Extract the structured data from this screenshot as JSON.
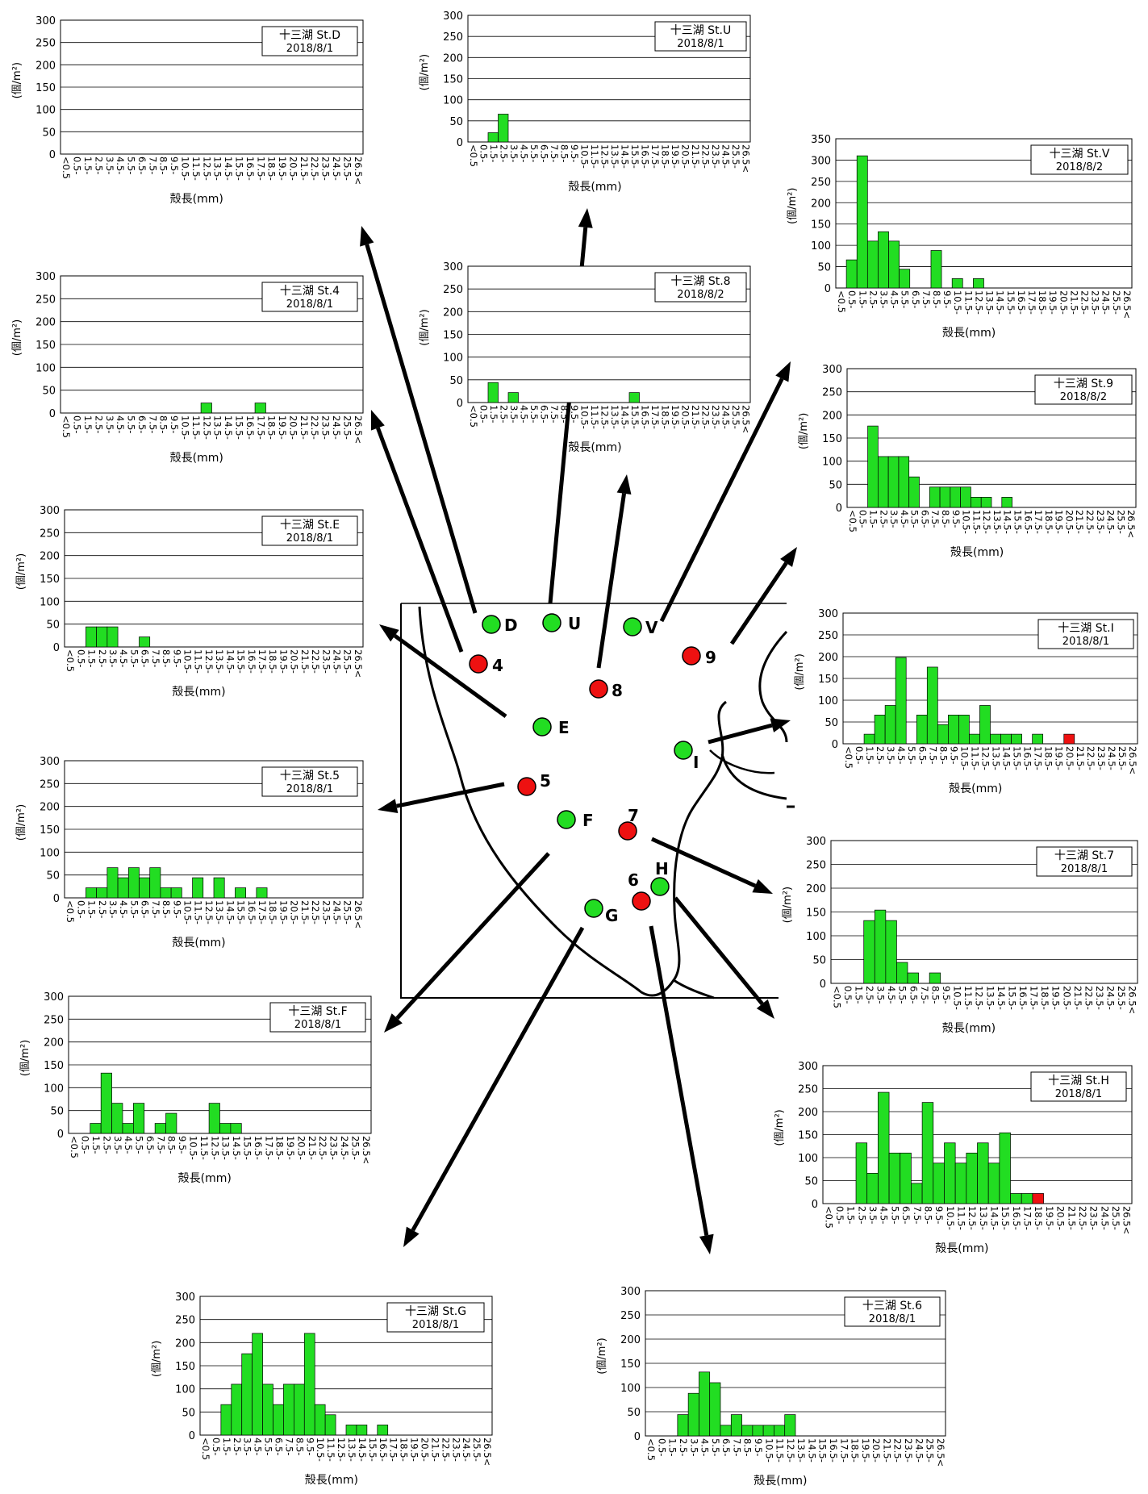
{
  "common": {
    "y_unit_label": "(個/m²)",
    "x_axis_label": "殻長(mm)",
    "tick_categories": [
      "<0.5",
      "0.5-",
      "1.5-",
      "2.5-",
      "3.5-",
      "4.5-",
      "5.5-",
      "6.5-",
      "7.5-",
      "8.5-",
      "9.5-",
      "10.5-",
      "11.5-",
      "12.5-",
      "13.5-",
      "14.5-",
      "15.5-",
      "16.5-",
      "17.5-",
      "18.5-",
      "19.5-",
      "20.5-",
      "21.5-",
      "22.5-",
      "23.5-",
      "24.5-",
      "25.5-",
      "26.5<"
    ],
    "colors": {
      "normal_bar": "#22dd22",
      "large_bar": "#ee1111",
      "axis": "#000000",
      "grid": "#000000"
    }
  },
  "map": {
    "colors": {
      "green_station": "#22dd22",
      "red_station": "#ee1111"
    },
    "stations": [
      {
        "id": "D",
        "color": "green"
      },
      {
        "id": "U",
        "color": "green"
      },
      {
        "id": "V",
        "color": "green"
      },
      {
        "id": "4",
        "color": "red"
      },
      {
        "id": "9",
        "color": "red"
      },
      {
        "id": "8",
        "color": "red"
      },
      {
        "id": "E",
        "color": "green"
      },
      {
        "id": "I",
        "color": "green"
      },
      {
        "id": "5",
        "color": "red"
      },
      {
        "id": "F",
        "color": "green"
      },
      {
        "id": "7",
        "color": "red"
      },
      {
        "id": "H",
        "color": "green"
      },
      {
        "id": "6",
        "color": "red"
      },
      {
        "id": "G",
        "color": "green"
      }
    ]
  },
  "chart_data": [
    {
      "type": "bar",
      "title": "十三湖 St.D",
      "subtitle": "2018/8/1",
      "ylim": [
        0,
        300
      ],
      "yticks": [
        0,
        50,
        100,
        150,
        200,
        250,
        300
      ],
      "xlabel": "殻長(mm)",
      "ylabel": "(個/m²)",
      "values": [
        0,
        0,
        0,
        0,
        0,
        0,
        0,
        0,
        0,
        0,
        0,
        0,
        0,
        0,
        0,
        0,
        0,
        0,
        0,
        0,
        0,
        0,
        0,
        0,
        0,
        0,
        0,
        0
      ],
      "highlight": []
    },
    {
      "type": "bar",
      "title": "十三湖 St.U",
      "subtitle": "2018/8/1",
      "ylim": [
        0,
        300
      ],
      "yticks": [
        0,
        50,
        100,
        150,
        200,
        250,
        300
      ],
      "xlabel": "殻長(mm)",
      "ylabel": "(個/m²)",
      "values": [
        0,
        0,
        22,
        66,
        0,
        0,
        0,
        0,
        0,
        0,
        0,
        0,
        0,
        0,
        0,
        0,
        0,
        0,
        0,
        0,
        0,
        0,
        0,
        0,
        0,
        0,
        0,
        0
      ],
      "highlight": []
    },
    {
      "type": "bar",
      "title": "十三湖 St.V",
      "subtitle": "2018/8/2",
      "ylim": [
        0,
        350
      ],
      "yticks": [
        0,
        50,
        100,
        150,
        200,
        250,
        300,
        350
      ],
      "xlabel": "殻長(mm)",
      "ylabel": "(個/m²)",
      "values": [
        0,
        66,
        310,
        110,
        132,
        110,
        44,
        0,
        0,
        88,
        0,
        22,
        0,
        22,
        0,
        0,
        0,
        0,
        0,
        0,
        0,
        0,
        0,
        0,
        0,
        0,
        0,
        0
      ],
      "highlight": []
    },
    {
      "type": "bar",
      "title": "十三湖 St.4",
      "subtitle": "2018/8/1",
      "ylim": [
        0,
        300
      ],
      "yticks": [
        0,
        50,
        100,
        150,
        200,
        250,
        300
      ],
      "xlabel": "殻長(mm)",
      "ylabel": "(個/m²)",
      "values": [
        0,
        0,
        0,
        0,
        0,
        0,
        0,
        0,
        0,
        0,
        0,
        0,
        0,
        22,
        0,
        0,
        0,
        0,
        22,
        0,
        0,
        0,
        0,
        0,
        0,
        0,
        0,
        0
      ],
      "highlight": []
    },
    {
      "type": "bar",
      "title": "十三湖 St.8",
      "subtitle": "2018/8/2",
      "ylim": [
        0,
        300
      ],
      "yticks": [
        0,
        50,
        100,
        150,
        200,
        250,
        300
      ],
      "xlabel": "殻長(mm)",
      "ylabel": "(個/m²)",
      "values": [
        0,
        0,
        44,
        0,
        22,
        0,
        0,
        0,
        0,
        0,
        0,
        0,
        0,
        0,
        0,
        0,
        22,
        0,
        0,
        0,
        0,
        0,
        0,
        0,
        0,
        0,
        0,
        0
      ],
      "highlight": []
    },
    {
      "type": "bar",
      "title": "十三湖 St.9",
      "subtitle": "2018/8/2",
      "ylim": [
        0,
        300
      ],
      "yticks": [
        0,
        50,
        100,
        150,
        200,
        250,
        300
      ],
      "xlabel": "殻長(mm)",
      "ylabel": "(個/m²)",
      "values": [
        0,
        0,
        176,
        110,
        110,
        110,
        66,
        0,
        44,
        44,
        44,
        44,
        22,
        22,
        0,
        22,
        0,
        0,
        0,
        0,
        0,
        0,
        0,
        0,
        0,
        0,
        0,
        0
      ],
      "highlight": []
    },
    {
      "type": "bar",
      "title": "十三湖 St.E",
      "subtitle": "2018/8/1",
      "ylim": [
        0,
        300
      ],
      "yticks": [
        0,
        50,
        100,
        150,
        200,
        250,
        300
      ],
      "xlabel": "殻長(mm)",
      "ylabel": "(個/m²)",
      "values": [
        0,
        0,
        44,
        44,
        44,
        0,
        0,
        22,
        0,
        0,
        0,
        0,
        0,
        0,
        0,
        0,
        0,
        0,
        0,
        0,
        0,
        0,
        0,
        0,
        0,
        0,
        0,
        0
      ],
      "highlight": []
    },
    {
      "type": "bar",
      "title": "十三湖 St.I",
      "subtitle": "2018/8/1",
      "ylim": [
        0,
        300
      ],
      "yticks": [
        0,
        50,
        100,
        150,
        200,
        250,
        300
      ],
      "xlabel": "殻長(mm)",
      "ylabel": "(個/m²)",
      "values": [
        0,
        0,
        22,
        66,
        88,
        198,
        0,
        66,
        176,
        44,
        66,
        66,
        22,
        88,
        22,
        22,
        22,
        0,
        22,
        0,
        0,
        22,
        0,
        0,
        0,
        0,
        0,
        0
      ],
      "highlight": [
        21
      ]
    },
    {
      "type": "bar",
      "title": "十三湖 St.5",
      "subtitle": "2018/8/1",
      "ylim": [
        0,
        300
      ],
      "yticks": [
        0,
        50,
        100,
        150,
        200,
        250,
        300
      ],
      "xlabel": "殻長(mm)",
      "ylabel": "(個/m²)",
      "values": [
        0,
        0,
        22,
        22,
        66,
        44,
        66,
        44,
        66,
        22,
        22,
        0,
        44,
        0,
        44,
        0,
        22,
        0,
        22,
        0,
        0,
        0,
        0,
        0,
        0,
        0,
        0,
        0
      ],
      "highlight": []
    },
    {
      "type": "bar",
      "title": "十三湖 St.7",
      "subtitle": "2018/8/1",
      "ylim": [
        0,
        300
      ],
      "yticks": [
        0,
        50,
        100,
        150,
        200,
        250,
        300
      ],
      "xlabel": "殻長(mm)",
      "ylabel": "(個/m²)",
      "values": [
        0,
        0,
        0,
        132,
        154,
        132,
        44,
        22,
        0,
        22,
        0,
        0,
        0,
        0,
        0,
        0,
        0,
        0,
        0,
        0,
        0,
        0,
        0,
        0,
        0,
        0,
        0,
        0
      ],
      "highlight": []
    },
    {
      "type": "bar",
      "title": "十三湖 St.F",
      "subtitle": "2018/8/1",
      "ylim": [
        0,
        300
      ],
      "yticks": [
        0,
        50,
        100,
        150,
        200,
        250,
        300
      ],
      "xlabel": "殻長(mm)",
      "ylabel": "(個/m²)",
      "values": [
        0,
        0,
        22,
        132,
        66,
        22,
        66,
        0,
        22,
        44,
        0,
        0,
        0,
        66,
        22,
        22,
        0,
        0,
        0,
        0,
        0,
        0,
        0,
        0,
        0,
        0,
        0,
        0
      ],
      "highlight": []
    },
    {
      "type": "bar",
      "title": "十三湖 St.H",
      "subtitle": "2018/8/1",
      "ylim": [
        0,
        300
      ],
      "yticks": [
        0,
        50,
        100,
        150,
        200,
        250,
        300
      ],
      "xlabel": "殻長(mm)",
      "ylabel": "(個/m²)",
      "values": [
        0,
        0,
        0,
        132,
        66,
        242,
        110,
        110,
        44,
        220,
        88,
        132,
        88,
        110,
        132,
        88,
        154,
        22,
        22,
        22,
        0,
        0,
        0,
        0,
        0,
        0,
        0,
        0
      ],
      "highlight": [
        19
      ]
    },
    {
      "type": "bar",
      "title": "十三湖 St.G",
      "subtitle": "2018/8/1",
      "ylim": [
        0,
        300
      ],
      "yticks": [
        0,
        50,
        100,
        150,
        200,
        250,
        300
      ],
      "xlabel": "殻長(mm)",
      "ylabel": "(個/m²)",
      "values": [
        0,
        0,
        66,
        110,
        176,
        220,
        110,
        66,
        110,
        110,
        220,
        66,
        44,
        0,
        22,
        22,
        0,
        22,
        0,
        0,
        0,
        0,
        0,
        0,
        0,
        0,
        0,
        0
      ],
      "highlight": []
    },
    {
      "type": "bar",
      "title": "十三湖 St.6",
      "subtitle": "2018/8/1",
      "ylim": [
        0,
        300
      ],
      "yticks": [
        0,
        50,
        100,
        150,
        200,
        250,
        300
      ],
      "xlabel": "殻長(mm)",
      "ylabel": "(個/m²)",
      "values": [
        0,
        0,
        0,
        44,
        88,
        132,
        110,
        22,
        44,
        22,
        22,
        22,
        22,
        44,
        0,
        0,
        0,
        0,
        0,
        0,
        0,
        0,
        0,
        0,
        0,
        0,
        0,
        0
      ],
      "highlight": []
    }
  ]
}
